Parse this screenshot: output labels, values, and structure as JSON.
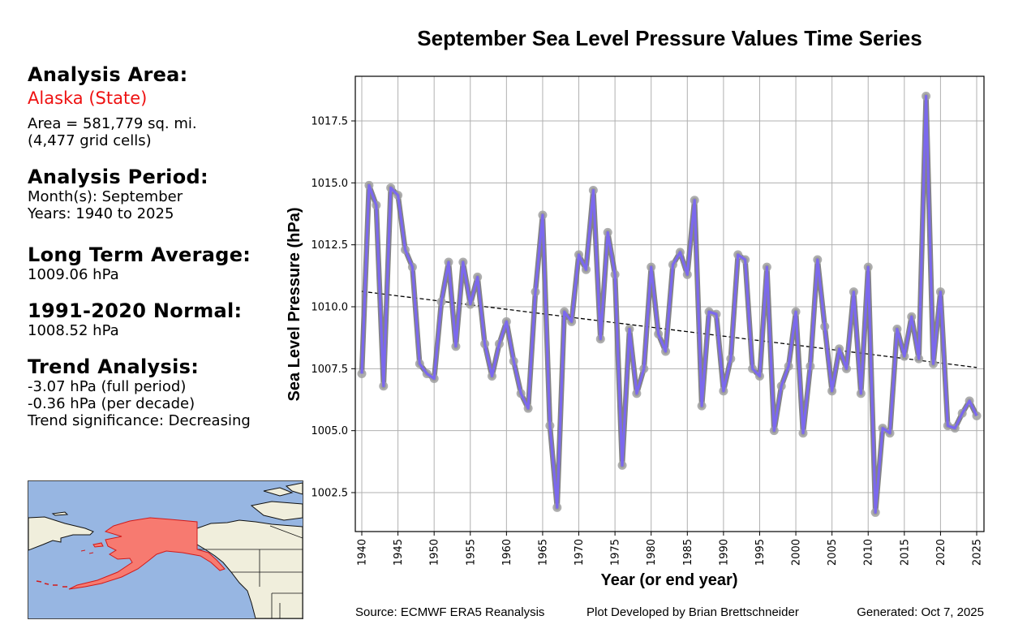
{
  "panel": {
    "analysis_area_heading": "Analysis Area:",
    "region_name": "Alaska (State)",
    "area_line": "Area = 581,779 sq. mi.",
    "grid_cells_line": "(4,477 grid cells)",
    "analysis_period_heading": "Analysis Period:",
    "months_line": "Month(s): September",
    "years_line": "Years: 1940 to 2025",
    "lta_heading": "Long Term Average:",
    "lta_value": "1009.06 hPa",
    "normal_heading": "1991-2020 Normal:",
    "normal_value": "1008.52 hPa",
    "trend_heading": "Trend Analysis:",
    "trend_full": "-3.07 hPa (full period)",
    "trend_decade": "-0.36 hPa (per decade)",
    "trend_significance": "Trend significance: Decreasing"
  },
  "map": {
    "highlighted_region": "Alaska",
    "colors": {
      "ocean": "#97b6e2",
      "land": "#f0eedc",
      "highlight": "#f77a70",
      "highlight_edge": "#d21a1a"
    }
  },
  "footer": {
    "source": "Source: ECMWF ERA5 Reanalysis",
    "developer": "Plot Developed by Brian Brettschneider",
    "generated": "Generated: Oct 7, 2025"
  },
  "chart_data": {
    "type": "line",
    "title": "September Sea Level Pressure Values Time Series",
    "xlabel": "Year (or end year)",
    "ylabel": "Sea Level Pressure (hPa)",
    "xlim": [
      1939,
      2026
    ],
    "ylim": [
      1001.3,
      1019.5
    ],
    "grid": true,
    "legend": "none",
    "x_ticks": [
      1940,
      1945,
      1950,
      1955,
      1960,
      1965,
      1970,
      1975,
      1980,
      1985,
      1990,
      1995,
      2000,
      2005,
      2010,
      2015,
      2020,
      2025
    ],
    "y_ticks": [
      1002.5,
      1005.0,
      1007.5,
      1010.0,
      1012.5,
      1015.0,
      1017.5
    ],
    "y_tick_labels": [
      "1002.5",
      "1005.0",
      "1007.5",
      "1010.0",
      "1012.5",
      "1015.0",
      "1017.5"
    ],
    "colors": {
      "line": "#7b68ee",
      "marker": "#a0a0a0",
      "trend": "#000000",
      "grid": "#b0b0b0"
    },
    "series": [
      {
        "name": "September SLP",
        "x": [
          1940,
          1941,
          1942,
          1943,
          1944,
          1945,
          1946,
          1947,
          1948,
          1949,
          1950,
          1951,
          1952,
          1953,
          1954,
          1955,
          1956,
          1957,
          1958,
          1959,
          1960,
          1961,
          1962,
          1963,
          1964,
          1965,
          1966,
          1967,
          1968,
          1969,
          1970,
          1971,
          1972,
          1973,
          1974,
          1975,
          1976,
          1977,
          1978,
          1979,
          1980,
          1981,
          1982,
          1983,
          1984,
          1985,
          1986,
          1987,
          1988,
          1989,
          1990,
          1991,
          1992,
          1993,
          1994,
          1995,
          1996,
          1997,
          1998,
          1999,
          2000,
          2001,
          2002,
          2003,
          2004,
          2005,
          2006,
          2007,
          2008,
          2009,
          2010,
          2011,
          2012,
          2013,
          2014,
          2015,
          2016,
          2017,
          2018,
          2019,
          2020,
          2021,
          2022,
          2023,
          2024,
          2025
        ],
        "values": [
          1007.3,
          1014.9,
          1014.1,
          1006.8,
          1014.8,
          1014.5,
          1012.3,
          1011.6,
          1007.7,
          1007.3,
          1007.1,
          1010.2,
          1011.8,
          1008.4,
          1011.8,
          1010.1,
          1011.2,
          1008.5,
          1007.2,
          1008.5,
          1009.4,
          1007.8,
          1006.5,
          1005.9,
          1010.6,
          1013.7,
          1005.2,
          1001.9,
          1009.8,
          1009.4,
          1012.1,
          1011.5,
          1014.7,
          1008.7,
          1013.0,
          1011.3,
          1003.6,
          1009.1,
          1006.5,
          1007.5,
          1011.6,
          1008.9,
          1008.2,
          1011.7,
          1012.2,
          1011.3,
          1014.3,
          1006.0,
          1009.8,
          1009.7,
          1006.6,
          1007.9,
          1012.1,
          1011.9,
          1007.5,
          1007.2,
          1011.6,
          1005.0,
          1006.8,
          1007.6,
          1009.8,
          1004.9,
          1007.6,
          1011.9,
          1009.2,
          1006.6,
          1008.3,
          1007.5,
          1010.6,
          1006.5,
          1011.6,
          1001.7,
          1005.1,
          1004.9,
          1009.1,
          1008.0,
          1009.6,
          1007.9,
          1018.5,
          1007.7,
          1010.6,
          1005.2,
          1005.1,
          1005.7,
          1006.2,
          1005.6
        ]
      },
      {
        "name": "Linear trend",
        "x": [
          1940,
          2025
        ],
        "values": [
          1010.62,
          1007.55
        ]
      }
    ]
  }
}
